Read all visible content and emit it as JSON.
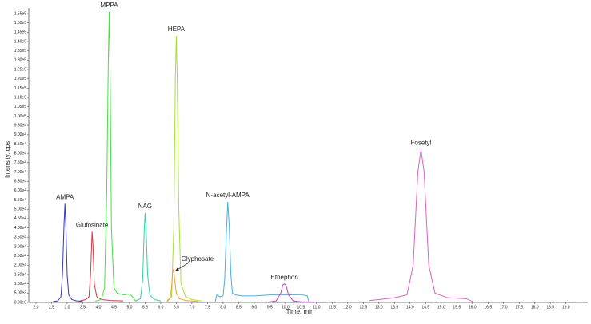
{
  "chart_data": {
    "type": "line",
    "x_label": "Time, min",
    "y_label": "Intensity, cps",
    "xlim": [
      1.77,
      19.7
    ],
    "ylim": [
      0,
      158000
    ],
    "xticks": [
      {
        "value": 2,
        "label": "2.0"
      },
      {
        "value": 2.5,
        "label": "2.5"
      },
      {
        "value": 3,
        "label": "3.0"
      },
      {
        "value": 3.5,
        "label": "3.5"
      },
      {
        "value": 4,
        "label": "4.0"
      },
      {
        "value": 4.5,
        "label": "4.5"
      },
      {
        "value": 5,
        "label": "5.0"
      },
      {
        "value": 5.5,
        "label": "5.5"
      },
      {
        "value": 6,
        "label": "6.0"
      },
      {
        "value": 6.5,
        "label": "6.5"
      },
      {
        "value": 7,
        "label": "7.0"
      },
      {
        "value": 7.5,
        "label": "7.5"
      },
      {
        "value": 8,
        "label": "8.0"
      },
      {
        "value": 8.5,
        "label": "8.5"
      },
      {
        "value": 9,
        "label": "9.0"
      },
      {
        "value": 9.5,
        "label": "9.5"
      },
      {
        "value": 10,
        "label": "10.0"
      },
      {
        "value": 10.5,
        "label": "10.5"
      },
      {
        "value": 11,
        "label": "11.0"
      },
      {
        "value": 11.5,
        "label": "11.5"
      },
      {
        "value": 12,
        "label": "12.0"
      },
      {
        "value": 12.5,
        "label": "12.5"
      },
      {
        "value": 13,
        "label": "13.0"
      },
      {
        "value": 13.5,
        "label": "13.5"
      },
      {
        "value": 14,
        "label": "14.0"
      },
      {
        "value": 14.5,
        "label": "14.5"
      },
      {
        "value": 15,
        "label": "15.0"
      },
      {
        "value": 15.5,
        "label": "15.5"
      },
      {
        "value": 16,
        "label": "16.0"
      },
      {
        "value": 16.5,
        "label": "16.5"
      },
      {
        "value": 17,
        "label": "17.0"
      },
      {
        "value": 17.5,
        "label": "17.5"
      },
      {
        "value": 18,
        "label": "18.0"
      },
      {
        "value": 18.5,
        "label": "18.5"
      },
      {
        "value": 19,
        "label": "19.0"
      }
    ],
    "yticks": [
      {
        "value": 0,
        "label": "0.00e0"
      },
      {
        "value": 5000,
        "label": "5.00e3"
      },
      {
        "value": 10000,
        "label": "1.00e4"
      },
      {
        "value": 15000,
        "label": "1.50e4"
      },
      {
        "value": 20000,
        "label": "2.00e4"
      },
      {
        "value": 25000,
        "label": "2.50e4"
      },
      {
        "value": 30000,
        "label": "3.00e4"
      },
      {
        "value": 35000,
        "label": "3.50e4"
      },
      {
        "value": 40000,
        "label": "4.00e4"
      },
      {
        "value": 45000,
        "label": "4.50e4"
      },
      {
        "value": 50000,
        "label": "5.00e4"
      },
      {
        "value": 55000,
        "label": "5.50e4"
      },
      {
        "value": 60000,
        "label": "6.00e4"
      },
      {
        "value": 65000,
        "label": "6.50e4"
      },
      {
        "value": 70000,
        "label": "7.00e4"
      },
      {
        "value": 75000,
        "label": "7.50e4"
      },
      {
        "value": 80000,
        "label": "8.00e4"
      },
      {
        "value": 85000,
        "label": "8.50e4"
      },
      {
        "value": 90000,
        "label": "9.00e4"
      },
      {
        "value": 95000,
        "label": "9.50e4"
      },
      {
        "value": 100000,
        "label": "1.00e5"
      },
      {
        "value": 105000,
        "label": "1.05e5"
      },
      {
        "value": 110000,
        "label": "1.10e5"
      },
      {
        "value": 115000,
        "label": "1.15e5"
      },
      {
        "value": 120000,
        "label": "1.20e5"
      },
      {
        "value": 125000,
        "label": "1.25e5"
      },
      {
        "value": 130000,
        "label": "1.30e5"
      },
      {
        "value": 135000,
        "label": "1.35e5"
      },
      {
        "value": 140000,
        "label": "1.40e5"
      },
      {
        "value": 145000,
        "label": "1.45e5"
      },
      {
        "value": 150000,
        "label": "1.50e5"
      },
      {
        "value": 155000,
        "label": "1.55e5"
      }
    ],
    "series": [
      {
        "name": "AMPA",
        "color": "#3535c8",
        "x": [
          2.55,
          2.7,
          2.8,
          2.85,
          2.9,
          2.93,
          2.96,
          3.0,
          3.05,
          3.15,
          3.3,
          3.5
        ],
        "values": [
          500,
          800,
          3000,
          15000,
          42000,
          53000,
          40000,
          15000,
          4000,
          1500,
          800,
          600
        ]
      },
      {
        "name": "Glufosinate",
        "color": "#e03545",
        "x": [
          3.4,
          3.6,
          3.7,
          3.75,
          3.8,
          3.83,
          3.87,
          3.95,
          4.1,
          4.4,
          4.8
        ],
        "values": [
          800,
          1500,
          3000,
          15000,
          38000,
          30000,
          10000,
          3000,
          1500,
          1000,
          800
        ]
      },
      {
        "name": "MPPA",
        "color": "#45e045",
        "x": [
          3.9,
          4.1,
          4.2,
          4.27,
          4.32,
          4.35,
          4.38,
          4.42,
          4.5,
          4.6,
          4.8,
          5.0,
          5.1,
          5.2
        ],
        "values": [
          700,
          1500,
          8000,
          60000,
          130000,
          156000,
          120000,
          40000,
          8000,
          5000,
          4000,
          4500,
          3000,
          500
        ]
      },
      {
        "name": "NAG",
        "color": "#35d0a5",
        "x": [
          5.2,
          5.35,
          5.42,
          5.47,
          5.5,
          5.53,
          5.58,
          5.65,
          5.8,
          6.0
        ],
        "values": [
          800,
          2000,
          12000,
          38000,
          48000,
          40000,
          15000,
          4000,
          1500,
          800
        ]
      },
      {
        "name": "HEPA",
        "color": "#a5e035",
        "x": [
          6.2,
          6.35,
          6.42,
          6.47,
          6.5,
          6.53,
          6.58,
          6.65,
          6.8,
          7.0,
          7.3
        ],
        "values": [
          1000,
          3000,
          40000,
          120000,
          143000,
          120000,
          50000,
          10000,
          3000,
          1500,
          800
        ]
      },
      {
        "name": "Glyphosate",
        "color": "#f0a025",
        "x": [
          6.2,
          6.3,
          6.35,
          6.38,
          6.41,
          6.45,
          6.5,
          6.6,
          6.8,
          7.2
        ],
        "values": [
          500,
          2000,
          8000,
          16000,
          18000,
          12000,
          5000,
          2000,
          1000,
          500
        ]
      },
      {
        "name": "N-acetyl-AMPA",
        "color": "#45b0e5",
        "x": [
          7.75,
          7.8,
          7.9,
          8.0,
          8.05,
          8.1,
          8.15,
          8.2,
          8.25,
          8.3,
          8.4,
          8.6,
          9.0,
          9.5,
          10.0,
          10.5,
          10.7,
          10.75
        ],
        "values": [
          500,
          4000,
          3000,
          3500,
          12000,
          35000,
          54000,
          40000,
          15000,
          5000,
          4000,
          3500,
          3500,
          4000,
          4000,
          4200,
          3500,
          500
        ]
      },
      {
        "name": "Ethephon",
        "color": "#c040c0",
        "x": [
          9.5,
          9.7,
          9.85,
          9.92,
          9.97,
          10.03,
          10.1,
          10.25,
          10.5,
          11.0
        ],
        "values": [
          300,
          800,
          5000,
          9500,
          10000,
          8500,
          4000,
          800,
          300,
          200
        ]
      },
      {
        "name": "Fosetyl",
        "color": "#e060c5",
        "x": [
          12.7,
          13.0,
          13.5,
          13.9,
          14.1,
          14.25,
          14.35,
          14.45,
          14.6,
          14.8,
          15.2,
          15.8,
          16.0
        ],
        "values": [
          1000,
          1500,
          2500,
          4000,
          20000,
          70000,
          82000,
          70000,
          20000,
          5000,
          2500,
          2000,
          500
        ]
      }
    ]
  }
}
